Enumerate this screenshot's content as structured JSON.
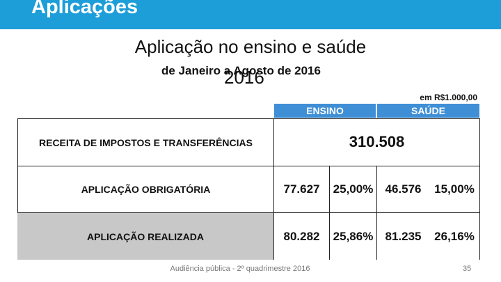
{
  "header": {
    "title": "Aplicações"
  },
  "slide": {
    "title": "Aplicação no ensino e saúde",
    "title_year": "2016",
    "subtitle": "de Janeiro a Agosto de 2016",
    "unit_note": "em R$1.000,00"
  },
  "table": {
    "columns": [
      "ENSINO",
      "SAÚDE"
    ],
    "rows": [
      {
        "label": "RECEITA DE IMPOSTOS E TRANSFERÊNCIAS",
        "total": "310.508"
      },
      {
        "label": "APLICAÇÃO OBRIGATÓRIA",
        "cells": [
          "77.627",
          "25,00%",
          "46.576",
          "15,00%"
        ]
      },
      {
        "label": "APLICAÇÃO REALIZADA",
        "cells": [
          "80.282",
          "25,86%",
          "81.235",
          "26,16%"
        ]
      }
    ]
  },
  "footer": {
    "text": "Audiência pública - 2º quadrimestre 2016",
    "page": "35"
  }
}
